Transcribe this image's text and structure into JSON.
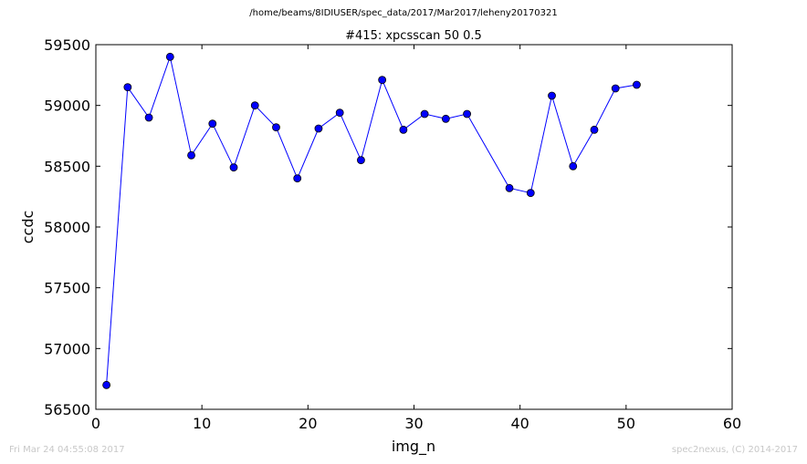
{
  "page": {
    "suptitle": "/home/beams/8IDIUSER/spec_data/2017/Mar2017/leheny20170321",
    "footer_left": "Fri Mar 24 04:55:08 2017",
    "footer_right": "spec2nexus, (C) 2014-2017"
  },
  "chart_data": {
    "type": "line",
    "title": "#415: xpcsscan 50 0.5",
    "xlabel": "img_n",
    "ylabel": "ccdc",
    "xlim": [
      0,
      60
    ],
    "ylim": [
      56500,
      59500
    ],
    "xticks": [
      0,
      10,
      20,
      30,
      40,
      50,
      60
    ],
    "yticks": [
      56500,
      57000,
      57500,
      58000,
      58500,
      59000,
      59500
    ],
    "grid": false,
    "marker": "circle",
    "colors": {
      "line": "#0000ff",
      "marker_fill": "#0000ff",
      "marker_edge": "#000000"
    },
    "series": [
      {
        "x": [
          1,
          3,
          5,
          7,
          9,
          11,
          13,
          15,
          17,
          19,
          21,
          23,
          25,
          27,
          29,
          31,
          33,
          35,
          39,
          41,
          43,
          45,
          47,
          49,
          51
        ],
        "y": [
          56700,
          59150,
          58900,
          59400,
          58590,
          58850,
          58490,
          59000,
          58820,
          58400,
          58810,
          58940,
          58550,
          59210,
          58800,
          58930,
          58890,
          58930,
          58320,
          58280,
          59080,
          58500,
          58800,
          59140,
          59170
        ]
      }
    ]
  }
}
